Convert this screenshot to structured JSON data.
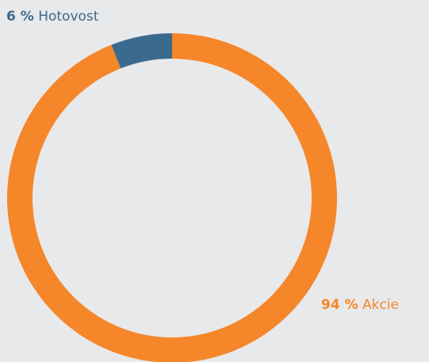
{
  "chart_data": {
    "type": "donut",
    "categories": [
      "Akcie",
      "Hotovost"
    ],
    "values": [
      94,
      6
    ],
    "value_labels": [
      "94 %",
      "6 %"
    ],
    "colors": [
      "#f5862a",
      "#3b6a8f"
    ]
  }
}
